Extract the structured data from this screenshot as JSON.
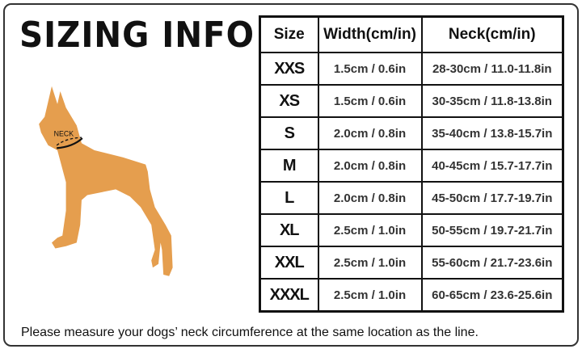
{
  "title": "SIZING INFO",
  "diagram": {
    "label": "NECK",
    "dog_color": "#E59E4E"
  },
  "table": {
    "headers": [
      "Size",
      "Width(cm/in)",
      "Neck(cm/in)"
    ],
    "rows": [
      [
        "XXS",
        "1.5cm / 0.6in",
        "28-30cm / 11.0-11.8in"
      ],
      [
        "XS",
        "1.5cm / 0.6in",
        "30-35cm / 11.8-13.8in"
      ],
      [
        "S",
        "2.0cm / 0.8in",
        "35-40cm / 13.8-15.7in"
      ],
      [
        "M",
        "2.0cm / 0.8in",
        "40-45cm / 15.7-17.7in"
      ],
      [
        "L",
        "2.0cm / 0.8in",
        "45-50cm / 17.7-19.7in"
      ],
      [
        "XL",
        "2.5cm / 1.0in",
        "50-55cm / 19.7-21.7in"
      ],
      [
        "XXL",
        "2.5cm / 1.0in",
        "55-60cm / 21.7-23.6in"
      ],
      [
        "XXXL",
        "2.5cm / 1.0in",
        "60-65cm / 23.6-25.6in"
      ]
    ]
  },
  "note": "Please measure your dogs’  neck circumference at the same location as the line."
}
